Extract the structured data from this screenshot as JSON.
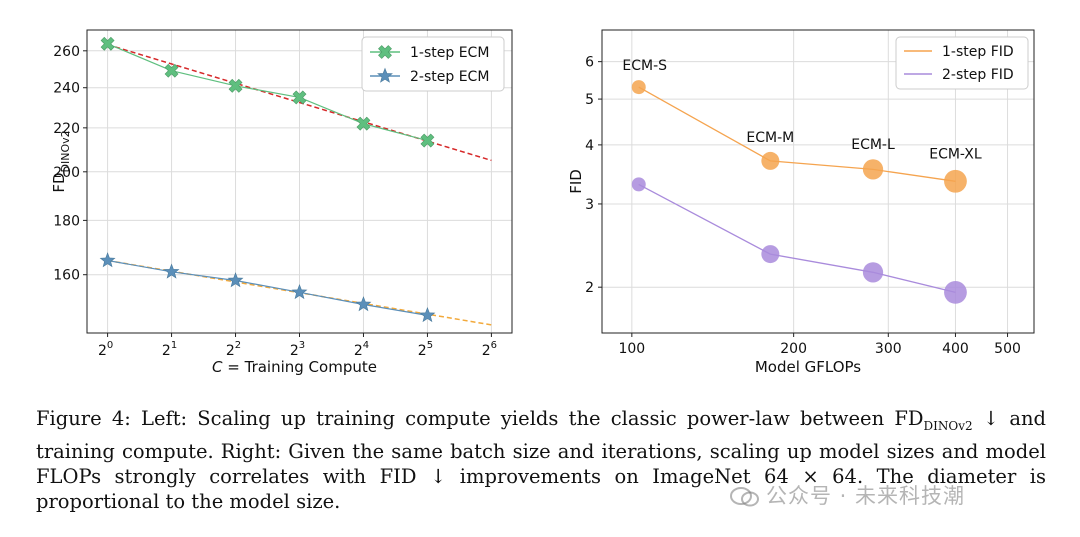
{
  "chart_data": [
    {
      "type": "line",
      "xlabel_italic": "C",
      "xlabel_rest": " = Training Compute",
      "ylabel_main": "FD",
      "ylabel_sub": "DINOv2",
      "x_scale": "log2",
      "x_ticks": [
        1,
        2,
        4,
        8,
        16,
        32,
        64
      ],
      "x_tick_base": "2",
      "x_tick_exponents": [
        "0",
        "1",
        "2",
        "3",
        "4",
        "5",
        "6"
      ],
      "y_scale": "log",
      "y_ticks": [
        160,
        180,
        200,
        220,
        240,
        260
      ],
      "xlim": [
        0.8,
        80
      ],
      "ylim": [
        141,
        272
      ],
      "grid": true,
      "legend_position": "top-right",
      "series": [
        {
          "name": "1-step ECM",
          "marker": "x",
          "color": "#5fbf7f",
          "x": [
            1,
            2,
            4,
            8,
            16,
            32
          ],
          "y": [
            264,
            249,
            241,
            235,
            222,
            214
          ]
        },
        {
          "name": "2-step ECM",
          "marker": "star",
          "color": "#5b8fb9",
          "x": [
            1,
            2,
            4,
            8,
            16,
            32
          ],
          "y": [
            165,
            161,
            158,
            154,
            150,
            146.5
          ]
        }
      ],
      "fit_lines": [
        {
          "color": "#d62728",
          "style": "dashed",
          "x": [
            1,
            64
          ],
          "y": [
            263.5,
            205
          ]
        },
        {
          "color": "#f2a93b",
          "style": "dashed",
          "x": [
            1,
            64
          ],
          "y": [
            165,
            143.5
          ]
        }
      ]
    },
    {
      "type": "scatter",
      "xlabel": "Model GFLOPs",
      "ylabel": "FID",
      "x_scale": "log",
      "y_scale": "log",
      "x_ticks": [
        100,
        200,
        300,
        400,
        500
      ],
      "y_ticks": [
        2,
        3,
        4,
        5,
        6
      ],
      "xlim": [
        88,
        560
      ],
      "ylim": [
        1.6,
        7.0
      ],
      "grid": true,
      "legend_position": "top-right",
      "series": [
        {
          "name": "1-step FID",
          "color": "#f5a44f",
          "x": [
            103,
            181,
            281,
            400
          ],
          "y": [
            5.3,
            3.7,
            3.55,
            3.35
          ]
        },
        {
          "name": "2-step FID",
          "color": "#a98bdc",
          "x": [
            103,
            181,
            281,
            400
          ],
          "y": [
            3.3,
            2.35,
            2.15,
            1.95
          ]
        }
      ],
      "point_labels": [
        "ECM-S",
        "ECM-M",
        "ECM-L",
        "ECM-XL"
      ],
      "marker_sizes": [
        1,
        1.5,
        1.9,
        2.4
      ]
    }
  ],
  "caption": {
    "label": "Figure 4:",
    "part1": " Left: Scaling up training compute yields the classic power-law between ",
    "fd_main": "FD",
    "fd_sub": "DINOv2",
    "part2": " ↓ and training compute. Right: Given the same batch size and iterations, scaling up model sizes and model FLOPs strongly correlates with ",
    "fid": "FID",
    "part3": " ↓ improvements on ImageNet 64 × 64. The diameter is proportional to the model size."
  },
  "watermark": "公众号 · 未来科技潮"
}
